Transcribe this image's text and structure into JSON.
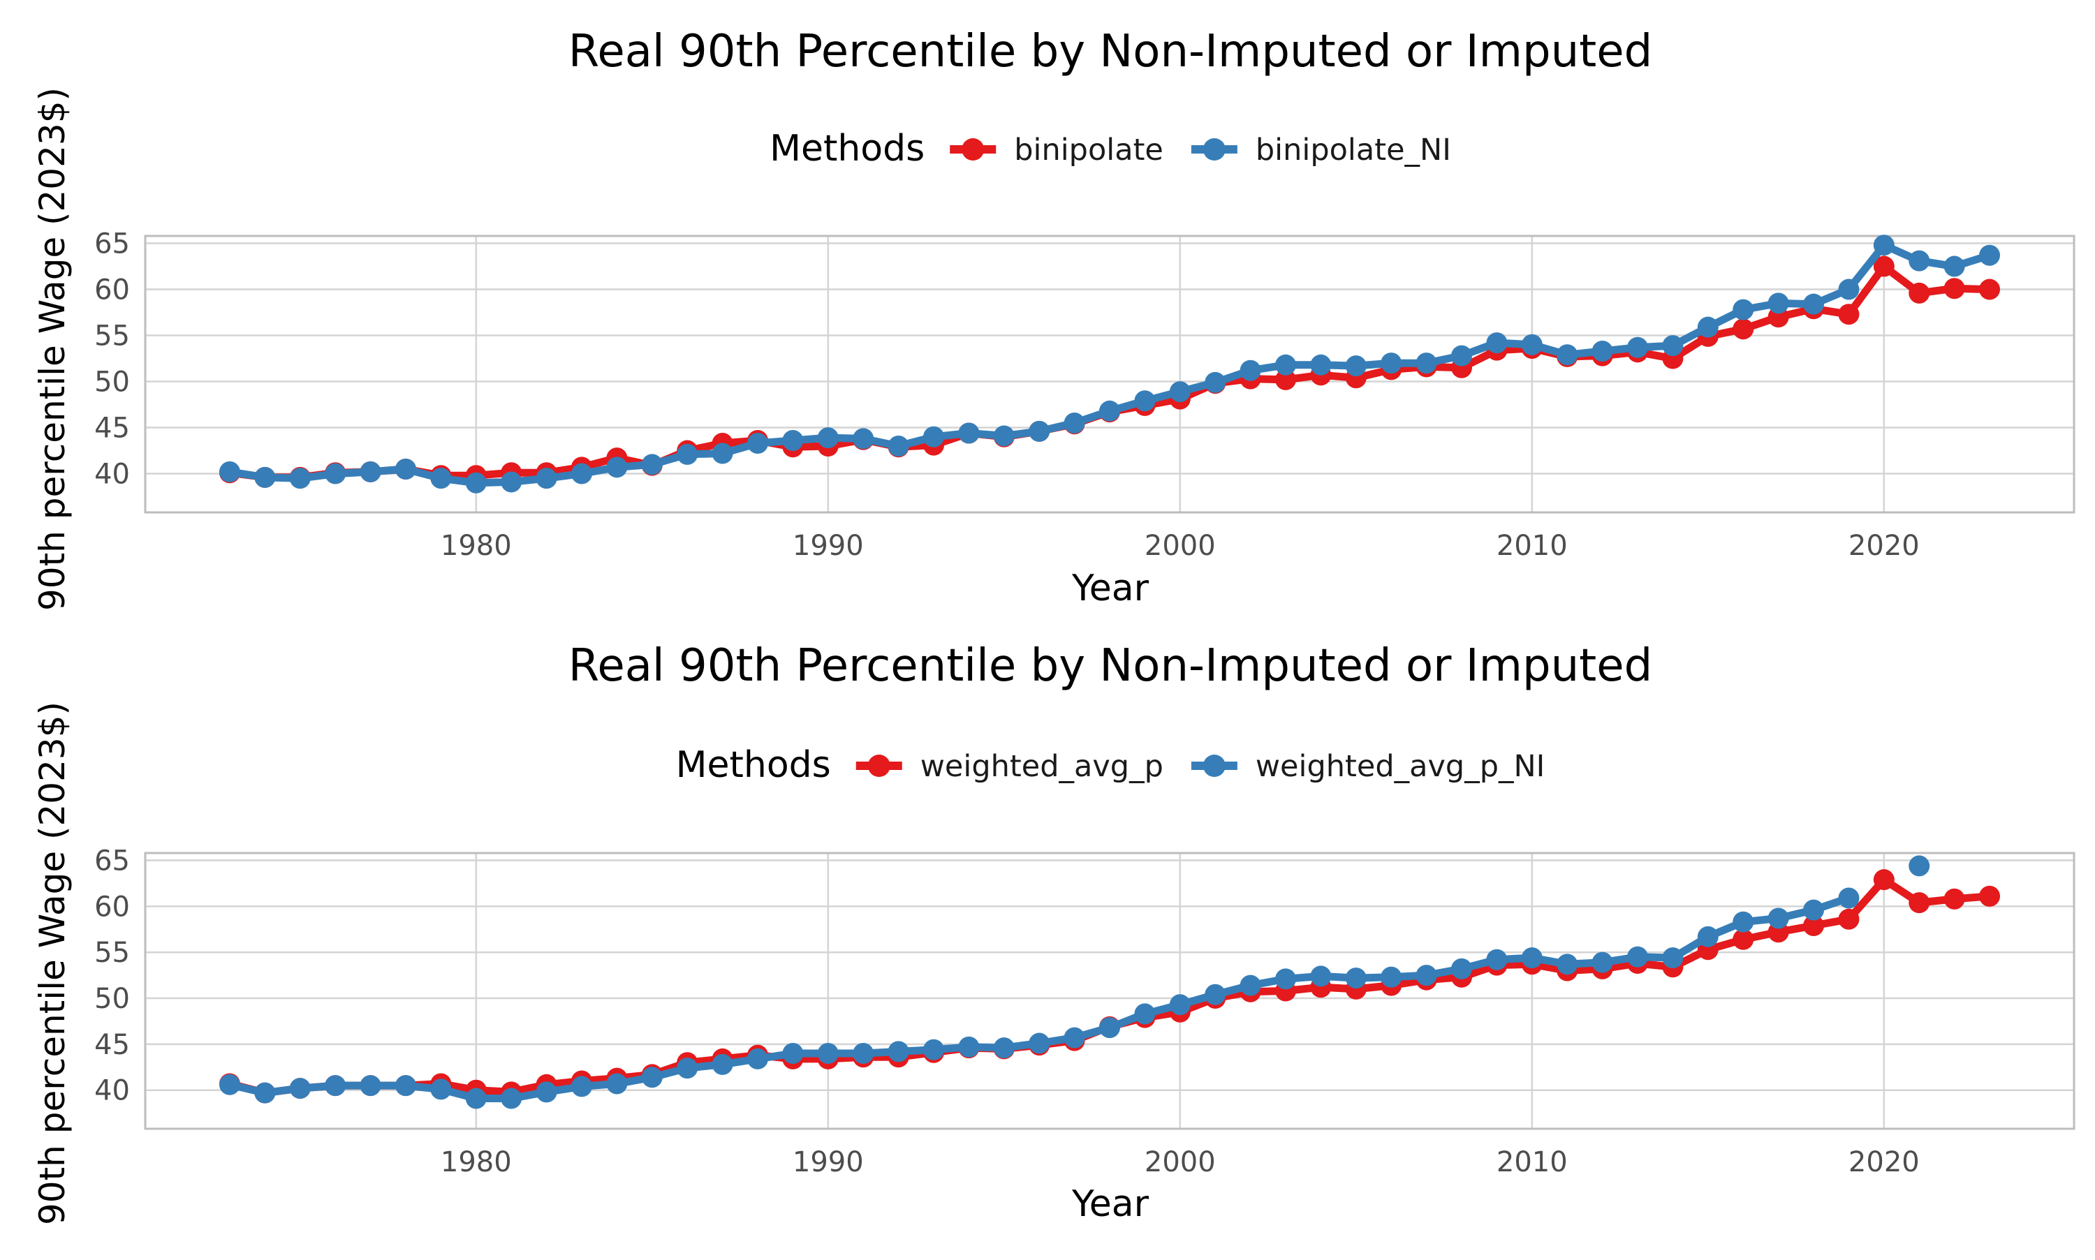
{
  "chart_data": [
    {
      "type": "line",
      "title": "Real 90th Percentile by Non-Imputed or Imputed",
      "xlabel": "Year",
      "ylabel": "90th percentile Wage (2023$)",
      "legend_title": "Methods",
      "legend_position": "top",
      "xlim": [
        1970.6,
        2025.4
      ],
      "ylim": [
        35.8,
        65.8
      ],
      "xticks": [
        1980,
        1990,
        2000,
        2010,
        2020
      ],
      "yticks": [
        40,
        45,
        50,
        55,
        60,
        65
      ],
      "grid": true,
      "x": [
        1973,
        1974,
        1975,
        1976,
        1977,
        1978,
        1979,
        1980,
        1981,
        1982,
        1983,
        1984,
        1985,
        1986,
        1987,
        1988,
        1989,
        1990,
        1991,
        1992,
        1993,
        1994,
        1995,
        1996,
        1997,
        1998,
        1999,
        2000,
        2001,
        2002,
        2003,
        2004,
        2005,
        2006,
        2007,
        2008,
        2009,
        2010,
        2011,
        2012,
        2013,
        2014,
        2015,
        2016,
        2017,
        2018,
        2019,
        2020,
        2021,
        2022,
        2023
      ],
      "series": [
        {
          "name": "binipolate",
          "color": "#E41A1C",
          "values": [
            40.1,
            39.6,
            39.6,
            40.1,
            40.2,
            40.5,
            39.8,
            39.8,
            40.1,
            40.1,
            40.7,
            41.7,
            40.9,
            42.5,
            43.3,
            43.6,
            42.9,
            43.0,
            43.7,
            42.9,
            43.1,
            44.4,
            44.0,
            44.6,
            45.4,
            46.7,
            47.4,
            48.1,
            49.8,
            50.3,
            50.2,
            50.7,
            50.4,
            51.3,
            51.6,
            51.5,
            53.4,
            53.6,
            52.7,
            52.8,
            53.2,
            52.5,
            54.9,
            55.7,
            57.0,
            57.9,
            57.3,
            62.5,
            59.6,
            60.1,
            60.0
          ]
        },
        {
          "name": "binipolate_NI",
          "color": "#377EB8",
          "values": [
            40.2,
            39.6,
            39.5,
            40.0,
            40.2,
            40.5,
            39.5,
            39.0,
            39.1,
            39.5,
            40.0,
            40.7,
            41.0,
            42.1,
            42.2,
            43.3,
            43.6,
            43.9,
            43.8,
            43.0,
            44.0,
            44.4,
            44.1,
            44.6,
            45.5,
            46.8,
            47.9,
            48.9,
            49.9,
            51.2,
            51.8,
            51.8,
            51.7,
            52.0,
            52.0,
            52.8,
            54.2,
            54.0,
            52.9,
            53.3,
            53.7,
            53.9,
            55.9,
            57.8,
            58.5,
            58.4,
            60.0,
            64.8,
            63.1,
            62.5,
            63.7
          ]
        }
      ]
    },
    {
      "type": "line",
      "title": "Real 90th Percentile by Non-Imputed or Imputed",
      "xlabel": "Year",
      "ylabel": "90th percentile Wage (2023$)",
      "legend_title": "Methods",
      "legend_position": "top",
      "xlim": [
        1970.6,
        2025.4
      ],
      "ylim": [
        35.8,
        65.8
      ],
      "xticks": [
        1980,
        1990,
        2000,
        2010,
        2020
      ],
      "yticks": [
        40,
        45,
        50,
        55,
        60,
        65
      ],
      "grid": true,
      "x": [
        1973,
        1974,
        1975,
        1976,
        1977,
        1978,
        1979,
        1980,
        1981,
        1982,
        1983,
        1984,
        1985,
        1986,
        1987,
        1988,
        1989,
        1990,
        1991,
        1992,
        1993,
        1994,
        1995,
        1996,
        1997,
        1998,
        1999,
        2000,
        2001,
        2002,
        2003,
        2004,
        2005,
        2006,
        2007,
        2008,
        2009,
        2010,
        2011,
        2012,
        2013,
        2014,
        2015,
        2016,
        2017,
        2018,
        2019,
        2020,
        2021,
        2022,
        2023
      ],
      "series": [
        {
          "name": "weighted_avg_p",
          "color": "#E41A1C",
          "values": [
            40.7,
            39.7,
            40.2,
            40.5,
            40.5,
            40.5,
            40.7,
            40.0,
            39.8,
            40.6,
            41.0,
            41.3,
            41.7,
            43.0,
            43.4,
            43.8,
            43.4,
            43.4,
            43.6,
            43.6,
            44.1,
            44.6,
            44.5,
            44.9,
            45.4,
            46.9,
            47.9,
            48.5,
            50.0,
            50.7,
            50.8,
            51.2,
            51.0,
            51.4,
            52.0,
            52.3,
            53.6,
            53.7,
            53.0,
            53.2,
            53.8,
            53.4,
            55.3,
            56.4,
            57.2,
            57.9,
            58.6,
            62.9,
            60.4,
            60.8,
            61.1
          ]
        },
        {
          "name": "weighted_avg_p_NI",
          "color": "#377EB8",
          "values": [
            40.6,
            39.7,
            40.2,
            40.5,
            40.5,
            40.5,
            40.1,
            39.1,
            39.1,
            39.8,
            40.4,
            40.7,
            41.4,
            42.4,
            42.8,
            43.4,
            44.0,
            44.0,
            44.0,
            44.2,
            44.4,
            44.7,
            44.6,
            45.1,
            45.7,
            46.8,
            48.3,
            49.3,
            50.4,
            51.4,
            52.1,
            52.4,
            52.2,
            52.3,
            52.5,
            53.2,
            54.2,
            54.4,
            53.7,
            53.9,
            54.5,
            54.4,
            56.7,
            58.3,
            58.7,
            59.6,
            60.9,
            null,
            64.4,
            null,
            null
          ]
        }
      ]
    }
  ]
}
